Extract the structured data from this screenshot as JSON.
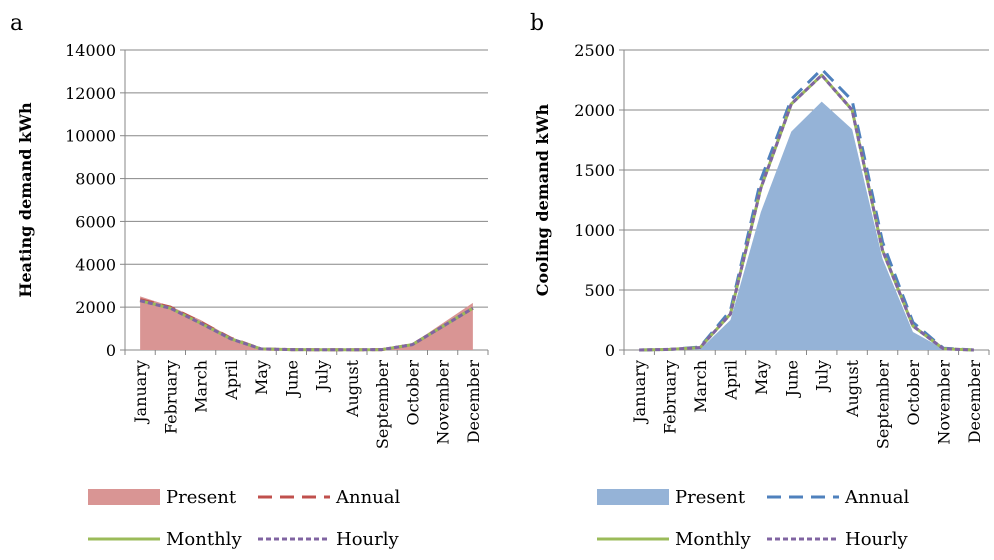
{
  "chart_data": [
    {
      "panel": "a",
      "type": "area",
      "ylabel": "Heating demand kWh",
      "ylim": [
        0,
        14000
      ],
      "yticks": [
        0,
        2000,
        4000,
        6000,
        8000,
        10000,
        12000,
        14000
      ],
      "categories": [
        "January",
        "February",
        "March",
        "April",
        "May",
        "June",
        "July",
        "August",
        "September",
        "October",
        "November",
        "December"
      ],
      "series": [
        {
          "name": "Present",
          "style": "area",
          "color": "#d99594",
          "values": [
            2500,
            2050,
            1400,
            600,
            60,
            20,
            10,
            10,
            20,
            300,
            1250,
            2200
          ]
        },
        {
          "name": "Annual",
          "style": "dash",
          "color": "#c0504d",
          "values": [
            2350,
            2000,
            1300,
            550,
            50,
            20,
            10,
            10,
            20,
            250,
            1100,
            1950
          ]
        },
        {
          "name": "Monthly",
          "style": "solid",
          "color": "#9bbb59",
          "values": [
            2300,
            1950,
            1250,
            520,
            50,
            20,
            10,
            10,
            20,
            250,
            1100,
            1950
          ]
        },
        {
          "name": "Hourly",
          "style": "dot",
          "color": "#8064a2",
          "values": [
            2300,
            1950,
            1250,
            520,
            50,
            20,
            10,
            10,
            20,
            250,
            1100,
            1950
          ]
        }
      ]
    },
    {
      "panel": "b",
      "type": "area",
      "ylabel": "Cooling demand kWh",
      "ylim": [
        0,
        2500
      ],
      "yticks": [
        0,
        500,
        1000,
        1500,
        2000,
        2500
      ],
      "categories": [
        "January",
        "February",
        "March",
        "April",
        "May",
        "June",
        "July",
        "August",
        "September",
        "October",
        "November",
        "December"
      ],
      "series": [
        {
          "name": "Present",
          "style": "area",
          "color": "#95b3d7",
          "values": [
            0,
            0,
            5,
            250,
            1150,
            1820,
            2070,
            1840,
            760,
            150,
            10,
            0
          ]
        },
        {
          "name": "Annual",
          "style": "dash",
          "color": "#4f81bd",
          "values": [
            0,
            5,
            25,
            330,
            1420,
            2090,
            2340,
            2080,
            900,
            230,
            15,
            0
          ]
        },
        {
          "name": "Monthly",
          "style": "solid",
          "color": "#9bbb59",
          "values": [
            0,
            5,
            20,
            300,
            1350,
            2050,
            2290,
            2000,
            830,
            200,
            10,
            0
          ]
        },
        {
          "name": "Hourly",
          "style": "dot",
          "color": "#8064a2",
          "values": [
            0,
            5,
            20,
            300,
            1350,
            2050,
            2290,
            2000,
            830,
            200,
            10,
            0
          ]
        }
      ]
    }
  ]
}
